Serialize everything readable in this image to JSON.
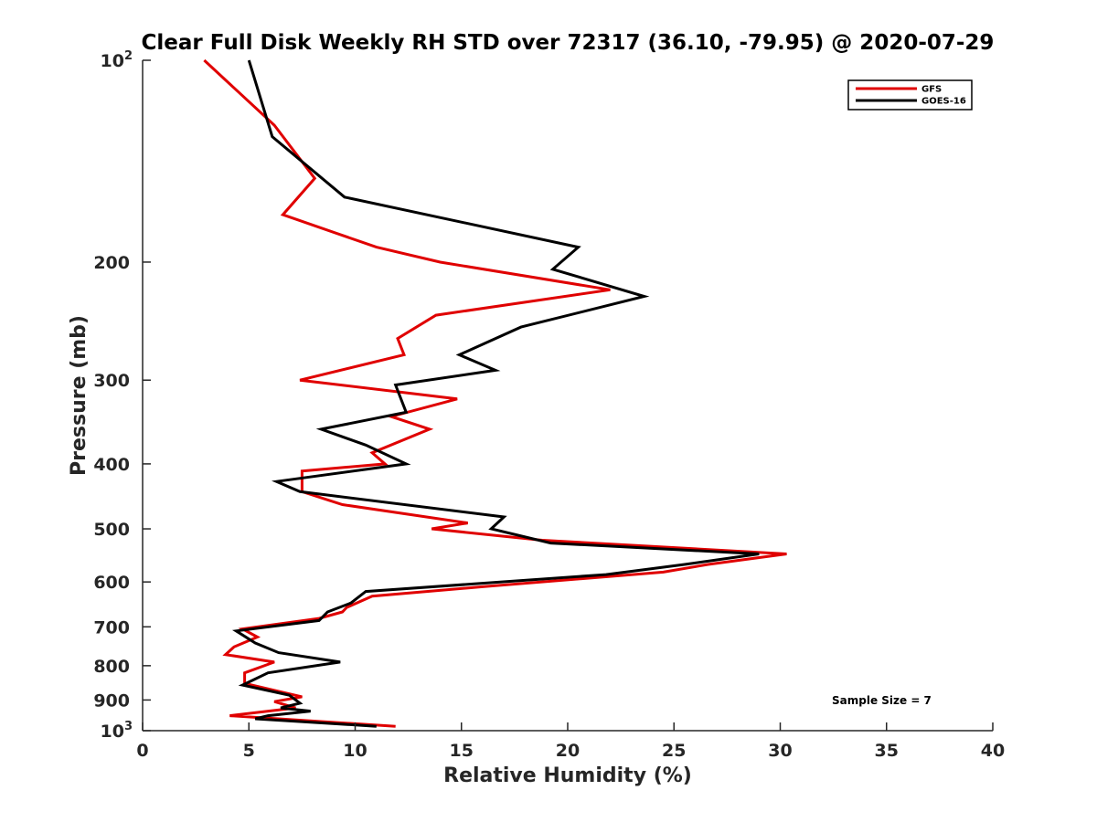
{
  "chart_data": {
    "type": "line",
    "title": "Clear Full Disk Weekly RH STD over 72317 (36.10, -79.95) @ 2020-07-29",
    "xlabel": "Relative Humidity (%)",
    "ylabel": "Pressure (mb)",
    "xlim": [
      0,
      40
    ],
    "ylim": [
      100,
      1000
    ],
    "y_scale": "log",
    "y_reversed": true,
    "x_ticks": [
      "0",
      "5",
      "10",
      "15",
      "20",
      "25",
      "30",
      "35",
      "40"
    ],
    "y_ticks": [
      {
        "value": 100,
        "base": "10",
        "exp": "2"
      },
      {
        "value": 200,
        "label": "200"
      },
      {
        "value": 300,
        "label": "300"
      },
      {
        "value": 400,
        "label": "400"
      },
      {
        "value": 500,
        "label": "500"
      },
      {
        "value": 600,
        "label": "600"
      },
      {
        "value": 700,
        "label": "700"
      },
      {
        "value": 800,
        "label": "800"
      },
      {
        "value": 900,
        "label": "900"
      },
      {
        "value": 1000,
        "base": "10",
        "exp": "3"
      }
    ],
    "grid": false,
    "legend_position": "top-right",
    "annotation": "Sample Size = 7",
    "series": [
      {
        "name": "GFS",
        "color": "#e00000",
        "points": [
          [
            2.9,
            100
          ],
          [
            6.2,
            125
          ],
          [
            8.1,
            150
          ],
          [
            6.6,
            170
          ],
          [
            11,
            190
          ],
          [
            14,
            200
          ],
          [
            22,
            220
          ],
          [
            13.8,
            240
          ],
          [
            12,
            260
          ],
          [
            12.3,
            275
          ],
          [
            7.4,
            300
          ],
          [
            14.8,
            320
          ],
          [
            11.7,
            340
          ],
          [
            13.5,
            355
          ],
          [
            10.8,
            385
          ],
          [
            11.4,
            400
          ],
          [
            7.5,
            410
          ],
          [
            7.5,
            440
          ],
          [
            9.4,
            460
          ],
          [
            15.3,
            490
          ],
          [
            13.6,
            500
          ],
          [
            18.8,
            520
          ],
          [
            30.3,
            545
          ],
          [
            26.6,
            565
          ],
          [
            24.5,
            580
          ],
          [
            16,
            610
          ],
          [
            10.8,
            630
          ],
          [
            9.6,
            655
          ],
          [
            9.4,
            665
          ],
          [
            8.3,
            680
          ],
          [
            4.7,
            705
          ],
          [
            5.4,
            725
          ],
          [
            4.3,
            750
          ],
          [
            3.9,
            770
          ],
          [
            6.2,
            790
          ],
          [
            4.8,
            820
          ],
          [
            4.8,
            850
          ],
          [
            7.5,
            890
          ],
          [
            6.2,
            905
          ],
          [
            7.2,
            925
          ],
          [
            4.1,
            950
          ],
          [
            11.9,
            985
          ]
        ]
      },
      {
        "name": "GOES-16",
        "color": "#000000",
        "points": [
          [
            5,
            100
          ],
          [
            6.1,
            130
          ],
          [
            9.5,
            160
          ],
          [
            20.5,
            190
          ],
          [
            19.3,
            205
          ],
          [
            23.6,
            225
          ],
          [
            17.8,
            250
          ],
          [
            14.9,
            275
          ],
          [
            16.6,
            290
          ],
          [
            11.9,
            305
          ],
          [
            12.4,
            335
          ],
          [
            8.4,
            355
          ],
          [
            10.5,
            375
          ],
          [
            12.4,
            400
          ],
          [
            6.3,
            425
          ],
          [
            7.4,
            440
          ],
          [
            17,
            480
          ],
          [
            16.4,
            500
          ],
          [
            19.2,
            525
          ],
          [
            29,
            545
          ],
          [
            25.5,
            565
          ],
          [
            21.8,
            585
          ],
          [
            10.5,
            620
          ],
          [
            9.8,
            645
          ],
          [
            8.7,
            665
          ],
          [
            8.3,
            685
          ],
          [
            4.4,
            710
          ],
          [
            5.3,
            740
          ],
          [
            6.4,
            765
          ],
          [
            9.3,
            790
          ],
          [
            5.9,
            820
          ],
          [
            4.7,
            855
          ],
          [
            6.9,
            885
          ],
          [
            7.4,
            910
          ],
          [
            6.5,
            925
          ],
          [
            7.9,
            935
          ],
          [
            5.9,
            950
          ],
          [
            5.3,
            960
          ],
          [
            11,
            985
          ]
        ]
      }
    ]
  }
}
